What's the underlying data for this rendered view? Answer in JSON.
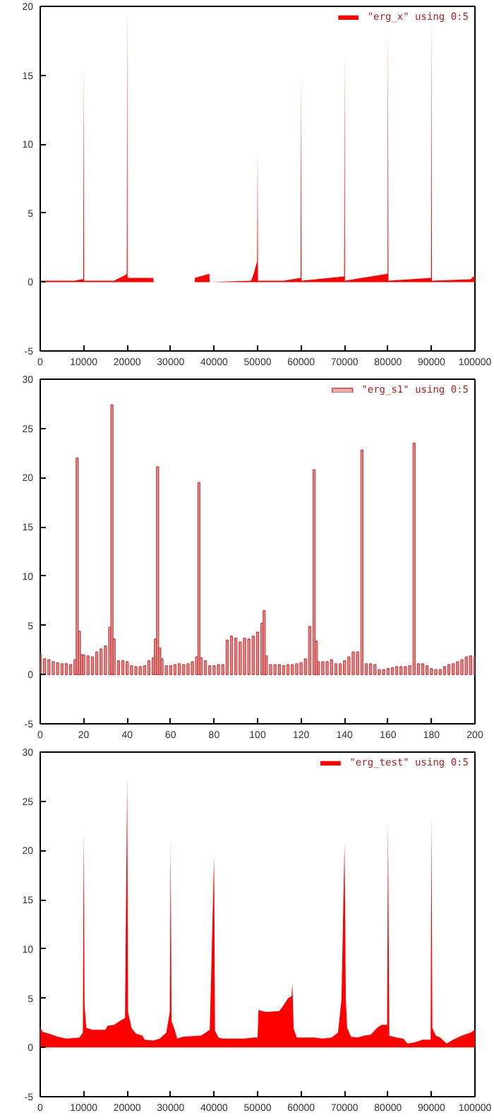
{
  "chart_data": [
    {
      "type": "area",
      "legend": "top right",
      "grid": false,
      "series": [
        {
          "name": "\"erg_x\" using 0:5",
          "color": "#ff0000",
          "x": [
            0,
            8000,
            9500,
            9900,
            10000,
            10100,
            17000,
            19500,
            19900,
            20000,
            20100,
            26000,
            26100,
            35500,
            35600,
            38900,
            39000,
            48500,
            49000,
            49900,
            50000,
            50100,
            56000,
            59900,
            60000,
            60100,
            69900,
            70000,
            70100,
            79900,
            80000,
            80100,
            89900,
            90000,
            90100,
            99000,
            100000
          ],
          "values": [
            0.1,
            0.1,
            0.2,
            0.2,
            15.8,
            0.1,
            0.1,
            0.5,
            0.6,
            20,
            0.3,
            0.3,
            0.0,
            0.0,
            0.3,
            0.6,
            0.0,
            0.1,
            0.5,
            1.5,
            9.5,
            0.1,
            0.1,
            0.3,
            15.2,
            0.1,
            0.4,
            16.6,
            0.1,
            0.6,
            18.4,
            0.1,
            0.3,
            19.3,
            0.1,
            0.2,
            0.5
          ]
        }
      ],
      "xlim": [
        0,
        100000
      ],
      "xticks": [
        0,
        10000,
        20000,
        30000,
        40000,
        50000,
        60000,
        70000,
        80000,
        90000,
        100000
      ],
      "ylim": [
        -5,
        20
      ],
      "yticks": [
        -5,
        0,
        5,
        10,
        15,
        20
      ]
    },
    {
      "type": "bar",
      "legend": "top right",
      "grid": false,
      "series": [
        {
          "name": "\"erg_s1\" using 0:5",
          "color": "#d04a4a",
          "x": [
            0,
            2,
            4,
            6,
            8,
            10,
            12,
            14,
            16,
            17,
            18,
            19,
            20,
            22,
            24,
            26,
            28,
            30,
            32,
            33,
            34,
            36,
            38,
            40,
            42,
            44,
            46,
            48,
            50,
            52,
            53,
            54,
            55,
            56,
            58,
            60,
            62,
            64,
            66,
            68,
            70,
            72,
            73,
            74,
            76,
            78,
            80,
            82,
            84,
            86,
            88,
            90,
            92,
            94,
            96,
            98,
            100,
            102,
            103,
            104,
            106,
            108,
            110,
            112,
            114,
            116,
            118,
            120,
            122,
            124,
            126,
            127,
            128,
            130,
            132,
            134,
            136,
            138,
            140,
            142,
            144,
            146,
            148,
            150,
            152,
            154,
            156,
            158,
            160,
            162,
            164,
            166,
            168,
            170,
            172,
            174,
            176,
            178,
            180,
            182,
            184,
            186,
            188,
            190,
            192,
            194,
            196,
            198,
            200
          ],
          "values": [
            2.1,
            1.6,
            1.5,
            1.3,
            1.2,
            1.1,
            1.1,
            1.0,
            1.5,
            22,
            4.4,
            2.0,
            2.0,
            1.9,
            1.8,
            2.3,
            2.6,
            2.9,
            4.8,
            27.4,
            3.6,
            1.4,
            1.4,
            1.3,
            0.9,
            0.8,
            0.8,
            0.9,
            1.4,
            1.7,
            3.6,
            21.1,
            2.7,
            1.6,
            0.9,
            0.9,
            1.0,
            1.1,
            1.0,
            1.1,
            1.3,
            1.8,
            19.5,
            1.7,
            1.4,
            0.9,
            0.9,
            1.0,
            1.0,
            3.5,
            3.9,
            3.7,
            3.3,
            3.7,
            3.6,
            3.9,
            4.3,
            5.2,
            6.5,
            1.9,
            1.0,
            1.0,
            1.0,
            0.9,
            1.0,
            1.0,
            1.1,
            1.2,
            1.6,
            4.9,
            20.8,
            3.4,
            1.3,
            1.3,
            1.3,
            1.5,
            1.1,
            1.1,
            1.4,
            1.8,
            2.3,
            2.3,
            22.8,
            1.1,
            1.1,
            1.0,
            0.5,
            0.5,
            0.6,
            0.7,
            0.8,
            0.8,
            0.8,
            0.9,
            23.5,
            1.1,
            1.1,
            0.9,
            0.6,
            0.5,
            0.5,
            0.8,
            1.0,
            1.1,
            1.3,
            1.5,
            1.8,
            1.9,
            1.8
          ]
        }
      ],
      "xlim": [
        0,
        200
      ],
      "xticks": [
        0,
        20,
        40,
        60,
        80,
        100,
        120,
        140,
        160,
        180,
        200
      ],
      "ylim": [
        -5,
        30
      ],
      "yticks": [
        -5,
        0,
        5,
        10,
        15,
        20,
        25,
        30
      ]
    },
    {
      "type": "area",
      "legend": "top right",
      "grid": false,
      "series": [
        {
          "name": "\"erg_test\" using 0:5",
          "color": "#ff0000",
          "x": [
            0,
            500,
            2000,
            4000,
            6000,
            9000,
            9800,
            10000,
            10200,
            10600,
            12000,
            15000,
            15500,
            17000,
            18000,
            19500,
            20000,
            20200,
            21000,
            22000,
            23500,
            24000,
            26000,
            27500,
            29000,
            29800,
            30000,
            30200,
            31000,
            31500,
            33000,
            37000,
            39000,
            40000,
            40200,
            41000,
            42000,
            47000,
            49000,
            50000,
            50200,
            51000,
            52000,
            55000,
            56000,
            57000,
            57800,
            58000,
            58300,
            59000,
            63000,
            65000,
            67000,
            68500,
            69300,
            70000,
            70300,
            70600,
            71500,
            73000,
            74500,
            76000,
            77500,
            78500,
            79800,
            80000,
            80300,
            82000,
            83500,
            84500,
            86000,
            88000,
            89800,
            90000,
            90200,
            91000,
            92000,
            93500,
            95000,
            97000,
            99000,
            100000
          ],
          "values": [
            2.1,
            1.6,
            1.4,
            1.1,
            0.9,
            1.0,
            1.5,
            22,
            4.3,
            2.0,
            1.8,
            1.8,
            2.2,
            2.3,
            2.6,
            3.0,
            27.4,
            3.6,
            2.0,
            1.4,
            1.2,
            0.8,
            0.7,
            0.9,
            1.5,
            3.6,
            21.1,
            2.7,
            1.7,
            0.9,
            1.1,
            1.2,
            1.8,
            19.5,
            1.7,
            1.0,
            0.9,
            0.9,
            1.0,
            1.0,
            3.8,
            3.7,
            3.6,
            3.7,
            4.3,
            5.0,
            5.2,
            6.5,
            1.9,
            1.0,
            1.0,
            0.9,
            1.0,
            1.5,
            4.9,
            20.8,
            4.8,
            2.0,
            1.1,
            1.0,
            1.2,
            1.3,
            2.0,
            2.3,
            2.3,
            22.8,
            1.2,
            1.0,
            0.9,
            0.4,
            0.5,
            0.8,
            0.8,
            23.5,
            2.0,
            1.2,
            1.0,
            0.4,
            0.8,
            1.2,
            1.5,
            1.8
          ]
        }
      ],
      "xlim": [
        0,
        100000
      ],
      "xticks": [
        0,
        10000,
        20000,
        30000,
        40000,
        50000,
        60000,
        70000,
        80000,
        90000,
        100000
      ],
      "ylim": [
        -5,
        30
      ],
      "yticks": [
        -5,
        0,
        5,
        10,
        15,
        20,
        25,
        30
      ]
    }
  ]
}
